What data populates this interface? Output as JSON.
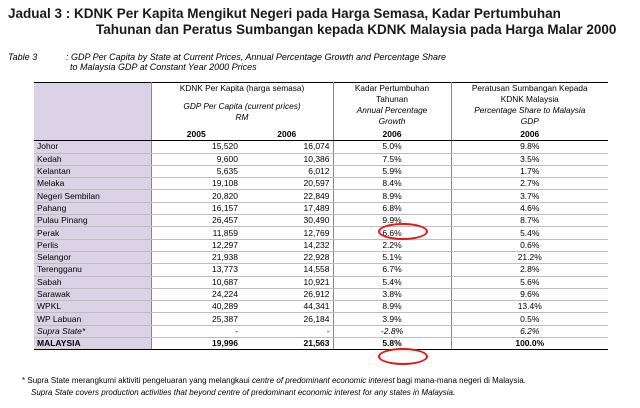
{
  "title": {
    "line1": "Jadual 3 : KDNK Per Kapita Mengikut Negeri pada Harga Semasa, Kadar Pertumbuhan",
    "line2": "Tahunan dan Peratus Sumbangan kepada KDNK Malaysia pada Harga Malar 2000"
  },
  "subtitle": {
    "label": "Table 3",
    "line1": ": GDP Per Capita by State at Current Prices, Annual Percentage Growth and Percentage Share",
    "line2": "to  Malaysia GDP at Constant Year 2000 Prices"
  },
  "header": {
    "gdp_ms": "KDNK Per Kapita (harga semasa)",
    "gdp_en": "GDP Per Capita (current prices)",
    "gdp_unit": "RM",
    "growth_ms1": "Kadar Pertumbuhan",
    "growth_ms2": "Tahunan",
    "growth_en1": "Annual Percentage",
    "growth_en2": "Growth",
    "share_ms1": "Peratusan Sumbangan Kepada",
    "share_ms2": "KDNK Malaysia",
    "share_en1": "Percentage Share to Malaysia",
    "share_en2": "GDP",
    "y2005": "2005",
    "y2006a": "2006",
    "y2006b": "2006",
    "y2006c": "2006"
  },
  "rows": [
    {
      "state": "Johor",
      "g2005": "15,520",
      "g2006": "16,074",
      "growth": "5.0%",
      "share": "9.8%"
    },
    {
      "state": "Kedah",
      "g2005": "9,600",
      "g2006": "10,386",
      "growth": "7.5%",
      "share": "3.5%"
    },
    {
      "state": "Kelantan",
      "g2005": "5,635",
      "g2006": "6,012",
      "growth": "5.9%",
      "share": "1.7%"
    },
    {
      "state": "Melaka",
      "g2005": "19,108",
      "g2006": "20,597",
      "growth": "8.4%",
      "share": "2.7%"
    },
    {
      "state": "Negeri Sembilan",
      "g2005": "20,820",
      "g2006": "22,849",
      "growth": "8.9%",
      "share": "3.7%"
    },
    {
      "state": "Pahang",
      "g2005": "16,157",
      "g2006": "17,489",
      "growth": "6.8%",
      "share": "4.6%"
    },
    {
      "state": "Pulau Pinang",
      "g2005": "26,457",
      "g2006": "30,490",
      "growth": "9.9%",
      "share": "8.7%"
    },
    {
      "state": "Perak",
      "g2005": "11,859",
      "g2006": "12,769",
      "growth": "6.6%",
      "share": "5.4%"
    },
    {
      "state": "Perlis",
      "g2005": "12,297",
      "g2006": "14,232",
      "growth": "2.2%",
      "share": "0.6%"
    },
    {
      "state": "Selangor",
      "g2005": "21,938",
      "g2006": "22,928",
      "growth": "5.1%",
      "share": "21.2%"
    },
    {
      "state": "Terengganu",
      "g2005": "13,773",
      "g2006": "14,558",
      "growth": "6.7%",
      "share": "2.8%"
    },
    {
      "state": "Sabah",
      "g2005": "10,687",
      "g2006": "10,921",
      "growth": "5.4%",
      "share": "5.6%"
    },
    {
      "state": "Sarawak",
      "g2005": "24,224",
      "g2006": "26,912",
      "growth": "3.8%",
      "share": "9.6%"
    },
    {
      "state": "WPKL",
      "g2005": "40,289",
      "g2006": "44,341",
      "growth": "8.9%",
      "share": "13.4%"
    },
    {
      "state": "WP Labuan",
      "g2005": "25,387",
      "g2006": "26,184",
      "growth": "3.9%",
      "share": "0.5%"
    }
  ],
  "supra": {
    "state": "Supra State*",
    "g2005": "-",
    "g2006": "-",
    "growth": "-2.8%",
    "share": "6.2%"
  },
  "total": {
    "state": "MALAYSIA",
    "g2005": "19,996",
    "g2006": "21,563",
    "growth": "5.8%",
    "share": "100.0%"
  },
  "footnote": {
    "line1_a": "Supra State merangkumi aktiviti pengeluaran yang melangkaui ",
    "line1_b": "centre of predominant economic interest",
    "line1_c": "  bagi mana-mana negeri di Malaysia.",
    "line2": "Supra State covers production activities that beyond centre of predominant economic interest for any states in Malaysia."
  },
  "highlight_color": "#e01818"
}
